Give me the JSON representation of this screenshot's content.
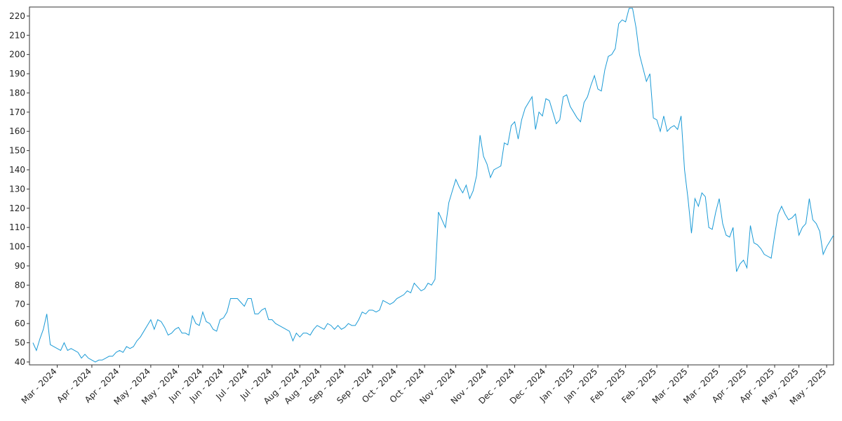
{
  "chart_data": {
    "type": "line",
    "series": [
      {
        "color": "#1a9ad6",
        "values": [
          50,
          46,
          52,
          57,
          65,
          49,
          48,
          47,
          46,
          50,
          46,
          47,
          46,
          45,
          42,
          44,
          42,
          41,
          40,
          41,
          41,
          42,
          43,
          43,
          45,
          46,
          45,
          48,
          47,
          48,
          51,
          53,
          56,
          59,
          62,
          57,
          62,
          61,
          58,
          54,
          55,
          57,
          58,
          55,
          55,
          54,
          64,
          60,
          59,
          66,
          61,
          60,
          57,
          56,
          62,
          63,
          66,
          73,
          73,
          73,
          71,
          69,
          73,
          73,
          65,
          65,
          67,
          68,
          62,
          62,
          60,
          59,
          58,
          57,
          56,
          51,
          55,
          53,
          55,
          55,
          54,
          57,
          59,
          58,
          57,
          60,
          59,
          57,
          59,
          57,
          58,
          60,
          59,
          59,
          62,
          66,
          65,
          67,
          67,
          66,
          67,
          72,
          71,
          70,
          71,
          73,
          74,
          75,
          77,
          76,
          81,
          79,
          77,
          78,
          81,
          80,
          83,
          118,
          114,
          110,
          123,
          129,
          135,
          131,
          128,
          132,
          125,
          129,
          137,
          158,
          147,
          143,
          136,
          140,
          141,
          142,
          154,
          153,
          163,
          165,
          156,
          166,
          172,
          175,
          178,
          161,
          170,
          168,
          177,
          176,
          170,
          164,
          166,
          178,
          179,
          173,
          170,
          167,
          165,
          175,
          178,
          184,
          189,
          182,
          181,
          192,
          199,
          200,
          203,
          216,
          218,
          217,
          224,
          224,
          214,
          200,
          193,
          186,
          190,
          167,
          166,
          160,
          168,
          160,
          162,
          163,
          161,
          168,
          140,
          125,
          107,
          125,
          121,
          128,
          126,
          110,
          109,
          118,
          125,
          112,
          106,
          105,
          110,
          87,
          91,
          93,
          89,
          111,
          102,
          101,
          99,
          96,
          95,
          94,
          106,
          117,
          121,
          117,
          114,
          115,
          117,
          106,
          110,
          112,
          125,
          114,
          112,
          108,
          96,
          100,
          103,
          106
        ]
      }
    ],
    "xlim": [
      -1,
      231
    ],
    "xticks": [
      {
        "value": 7,
        "label": "Mar - 2024"
      },
      {
        "value": 17,
        "label": "Apr - 2024"
      },
      {
        "value": 25,
        "label": "Apr - 2024"
      },
      {
        "value": 34,
        "label": "May - 2024"
      },
      {
        "value": 42,
        "label": "May - 2024"
      },
      {
        "value": 49,
        "label": "Jun - 2024"
      },
      {
        "value": 55,
        "label": "Jun - 2024"
      },
      {
        "value": 62,
        "label": "Jul - 2024"
      },
      {
        "value": 69,
        "label": "Jul - 2024"
      },
      {
        "value": 77,
        "label": "Aug - 2024"
      },
      {
        "value": 83,
        "label": "Aug - 2024"
      },
      {
        "value": 90,
        "label": "Sep - 2024"
      },
      {
        "value": 98,
        "label": "Sep - 2024"
      },
      {
        "value": 105,
        "label": "Oct - 2024"
      },
      {
        "value": 113,
        "label": "Oct - 2024"
      },
      {
        "value": 122,
        "label": "Nov - 2024"
      },
      {
        "value": 131,
        "label": "Nov - 2024"
      },
      {
        "value": 139,
        "label": "Dec - 2024"
      },
      {
        "value": 148,
        "label": "Dec - 2024"
      },
      {
        "value": 156,
        "label": "Jan - 2025"
      },
      {
        "value": 163,
        "label": "Jan - 2025"
      },
      {
        "value": 171,
        "label": "Feb - 2025"
      },
      {
        "value": 180,
        "label": "Feb - 2025"
      },
      {
        "value": 189,
        "label": "Mar - 2025"
      },
      {
        "value": 198,
        "label": "Mar - 2025"
      },
      {
        "value": 206,
        "label": "Apr - 2025"
      },
      {
        "value": 214,
        "label": "Apr - 2025"
      },
      {
        "value": 221,
        "label": "May - 2025"
      },
      {
        "value": 229,
        "label": "May - 2025"
      }
    ],
    "ylim": [
      38.5,
      224.7
    ],
    "yticks": [
      40,
      50,
      60,
      70,
      80,
      90,
      100,
      110,
      120,
      130,
      140,
      150,
      160,
      170,
      180,
      190,
      200,
      210,
      220
    ]
  }
}
